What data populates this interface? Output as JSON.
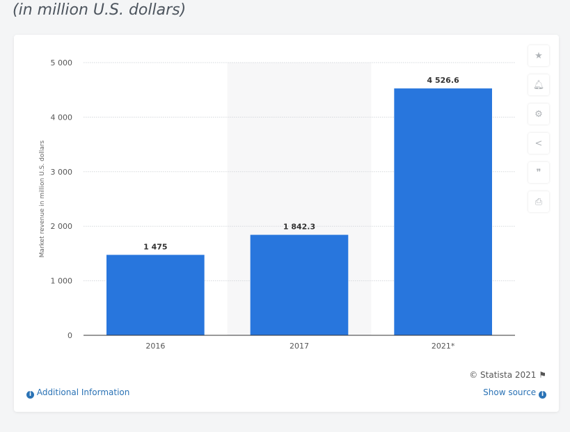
{
  "subtitle": "(in million U.S. dollars)",
  "chart_data": {
    "type": "bar",
    "categories": [
      "2016",
      "2017",
      "2021*"
    ],
    "values": [
      1475,
      1842.3,
      4526.6
    ],
    "value_labels": [
      "1 475",
      "1 842.3",
      "4 526.6"
    ],
    "ylabel": "Market revenue in million U.S. dollars",
    "ylim": [
      0,
      5000
    ],
    "yticks": [
      0,
      1000,
      2000,
      3000,
      4000,
      5000
    ],
    "ytick_labels": [
      "0",
      "1 000",
      "2 000",
      "3 000",
      "4 000",
      "5 000"
    ],
    "grid": true,
    "bar_color": "#2876dd",
    "highlighted_category": "2017"
  },
  "toolbar": [
    "star-icon",
    "bell-icon",
    "gear-icon",
    "share-icon",
    "quote-icon",
    "print-icon"
  ],
  "footer": {
    "copyright": "© Statista 2021",
    "additional_info": "Additional Information",
    "show_source": "Show source"
  }
}
